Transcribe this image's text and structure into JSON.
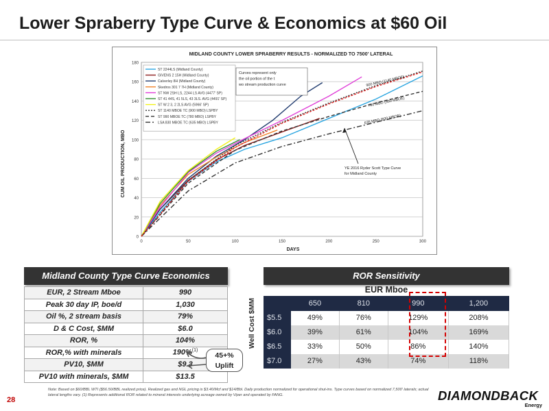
{
  "header": {
    "title": "Lower Spraberry Type Curve & Economics at $60 Oil"
  },
  "chart_data": {
    "type": "line",
    "title": "MIDLAND COUNTY LOWER SPRABERRY RESULTS - NORMALIZED TO 7500' LATERAL",
    "xlabel": "DAYS",
    "ylabel": "CUM OIL PRODUCTION, MBO",
    "xlim": [
      0,
      300
    ],
    "ylim": [
      0,
      180
    ],
    "xticks": [
      "0",
      "50",
      "100",
      "150",
      "200",
      "250",
      "300"
    ],
    "yticks": [
      "0",
      "20",
      "40",
      "60",
      "80",
      "100",
      "120",
      "140",
      "160",
      "180"
    ],
    "grid": true,
    "legend_placement": "top-left",
    "annotation_box": "Curves represent only the oil portion of the two stream production curve",
    "annotation_ryder": "YE 2016 Ryder Scott Type Curve for Midland County",
    "series": [
      {
        "name": "ST 2244LS (Midland County)",
        "color": "#2aa5e0",
        "dash": "",
        "x": [
          0,
          20,
          50,
          80,
          110,
          150,
          200,
          250,
          300
        ],
        "y": [
          0,
          25,
          57,
          77,
          90,
          102,
          122,
          142,
          166
        ]
      },
      {
        "name": "GIVENS 2 15H (Midland County)",
        "color": "#8a1a1a",
        "dash": "",
        "x": [
          0,
          20,
          50,
          80,
          110,
          150,
          190
        ],
        "y": [
          0,
          28,
          58,
          79,
          94,
          108,
          122
        ]
      },
      {
        "name": "Calverley 8H (Midland County)",
        "color": "#1f3a6e",
        "dash": "",
        "x": [
          0,
          20,
          50,
          80,
          110,
          140,
          170,
          193
        ],
        "y": [
          0,
          28,
          60,
          83,
          100,
          120,
          145,
          159
        ]
      },
      {
        "name": "Skedros 301 7 7H (Midland County)",
        "color": "#f0832a",
        "dash": "",
        "x": [
          0,
          20,
          50,
          80,
          110,
          145
        ],
        "y": [
          0,
          32,
          64,
          82,
          97,
          110
        ]
      },
      {
        "name": "ST NW 2SH LS, 2244 LS AVG (4477' SP)",
        "color": "#e040d8",
        "dash": "",
        "x": [
          0,
          20,
          50,
          80,
          110,
          150,
          200,
          235
        ],
        "y": [
          0,
          30,
          66,
          86,
          101,
          120,
          145,
          165
        ]
      },
      {
        "name": "ST 41 44S, 41 5LS, 43 3LS. AVG (4491' SP)",
        "color": "#2e8b2e",
        "dash": "",
        "x": [
          0,
          20,
          50,
          80,
          105
        ],
        "y": [
          0,
          34,
          67,
          88,
          100
        ]
      },
      {
        "name": "ST W 2 3, 2 2LS AVG (5966' SP)",
        "color": "#f2f21a",
        "dash": "",
        "x": [
          0,
          20,
          50,
          80,
          100
        ],
        "y": [
          0,
          36,
          68,
          90,
          102
        ]
      },
      {
        "name": "ST 1140 MBOE TC (900 MBO) LSPBY",
        "color": "#333333",
        "dash": "2,2",
        "x": [
          0,
          50,
          100,
          150,
          200,
          250,
          300
        ],
        "y": [
          0,
          58,
          94,
          118,
          138,
          156,
          171
        ]
      },
      {
        "name": "ST 990 MBOE TC (780 MBO) LSPBY",
        "color": "#333333",
        "dash": "5,3",
        "x": [
          0,
          50,
          100,
          150,
          200,
          250,
          300
        ],
        "y": [
          0,
          55,
          89,
          109,
          124,
          138,
          150
        ]
      },
      {
        "name": "LSA 830 MBOE TC (635 MBO) LSPBY",
        "color": "#333333",
        "dash": "7,3,2,3",
        "x": [
          0,
          50,
          100,
          150,
          200,
          250,
          300
        ],
        "y": [
          0,
          47,
          76,
          93,
          106,
          118,
          130
        ]
      },
      {
        "name": "",
        "color": "#e02020",
        "dash": "3,2",
        "x": [
          0,
          50,
          100,
          150,
          200,
          250,
          300
        ],
        "y": [
          0,
          57,
          92,
          117,
          137,
          155,
          170
        ]
      }
    ],
    "curve_labels": [
      {
        "text": "900 MBO (1140 MBOE)",
        "x": 240,
        "y": 155,
        "angle": -13
      },
      {
        "text": "780 MBO (990 MBOE)",
        "x": 242,
        "y": 134,
        "angle": -12
      },
      {
        "text": "635 MBO (830 MBOE)",
        "x": 238,
        "y": 116,
        "angle": -12
      }
    ]
  },
  "econ": {
    "header": "Midland County Type Curve Economics",
    "rows": [
      {
        "label": "EUR, 2 Stream Mboe",
        "value": "990"
      },
      {
        "label": "Peak 30 day IP, boe/d",
        "value": "1,030"
      },
      {
        "label": "Oil %, 2 stream basis",
        "value": "79%"
      },
      {
        "label": "D & C Cost, $MM",
        "value": "$6.0"
      },
      {
        "label": "ROR, %",
        "value": "104%"
      },
      {
        "label": "ROR,% with minerals",
        "value": "190%"
      },
      {
        "label": "PV10, $MM",
        "value": "$9.3"
      },
      {
        "label": "PV10 with minerals, $MM",
        "value": "$13.5"
      }
    ],
    "footnote_mark": "(1)",
    "uplift_pct": "45+%",
    "uplift_word": "Uplift"
  },
  "ror": {
    "header": "ROR Sensitivity",
    "col_axis": "EUR Mboe",
    "row_axis": "Well Cost $MM",
    "columns": [
      "650",
      "810",
      "990",
      "1,200"
    ],
    "rows": [
      {
        "cost": "$5.5",
        "values": [
          "49%",
          "76%",
          "129%",
          "208%"
        ]
      },
      {
        "cost": "$6.0",
        "values": [
          "39%",
          "61%",
          "104%",
          "169%"
        ]
      },
      {
        "cost": "$6.5",
        "values": [
          "33%",
          "50%",
          "86%",
          "140%"
        ]
      },
      {
        "cost": "$7.0",
        "values": [
          "27%",
          "43%",
          "74%",
          "118%"
        ]
      }
    ]
  },
  "footer": {
    "note": "Note: Based on $60/BBL WTI ($56.50/BBL realized price). Realized gas and NGL pricing is $3.40/Mcf and $14/Bbl. Daily production normalized for operational shut-ins. Type curves based on normalized 7,500' laterals; actual lateral lengths vary. (1) Represents additional ROR related to mineral interests underlying acreage owned by Viper and operated by FANG.",
    "page": "28",
    "logo_main": "DIAMONDBACK",
    "logo_sub": "Energy"
  }
}
